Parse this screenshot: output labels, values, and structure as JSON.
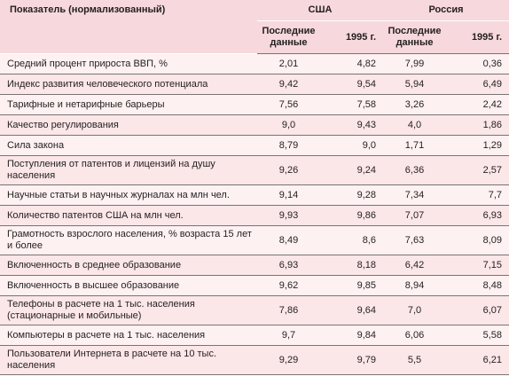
{
  "header": {
    "indicator": "Показатель (нормализованный)",
    "usa": "США",
    "russia": "Россия",
    "latest": "Последние данные",
    "year": "1995 г."
  },
  "rows": [
    {
      "name": "Средний процент прироста ВВП, %",
      "usa_latest": "2,01",
      "usa_1995": "4,82",
      "rus_latest": "7,99",
      "rus_1995": "0,36"
    },
    {
      "name": "Индекс развития человеческого потенциала",
      "usa_latest": "9,42",
      "usa_1995": "9,54",
      "rus_latest": "5,94",
      "rus_1995": "6,49"
    },
    {
      "name": "Тарифные и нетарифные барьеры",
      "usa_latest": "7,56",
      "usa_1995": "7,58",
      "rus_latest": "3,26",
      "rus_1995": "2,42"
    },
    {
      "name": "Качество регулирования",
      "usa_latest": "9,0",
      "usa_1995": "9,43",
      "rus_latest": "4,0",
      "rus_1995": "1,86"
    },
    {
      "name": "Сила закона",
      "usa_latest": "8,79",
      "usa_1995": "9,0",
      "rus_latest": "1,71",
      "rus_1995": "1,29"
    },
    {
      "name": "Поступления от патентов и лицензий на душу населения",
      "usa_latest": "9,26",
      "usa_1995": "9,24",
      "rus_latest": "6,36",
      "rus_1995": "2,57"
    },
    {
      "name": "Научные статьи в научных журналах на млн чел.",
      "usa_latest": "9,14",
      "usa_1995": "9,28",
      "rus_latest": "7,34",
      "rus_1995": "7,7"
    },
    {
      "name": "Количество патентов США на млн чел.",
      "usa_latest": "9,93",
      "usa_1995": "9,86",
      "rus_latest": "7,07",
      "rus_1995": "6,93"
    },
    {
      "name": "Грамотность взрослого населения, % возраста 15 лет и более",
      "usa_latest": "8,49",
      "usa_1995": "8,6",
      "rus_latest": "7,63",
      "rus_1995": "8,09"
    },
    {
      "name": "Включенность в среднее образование",
      "usa_latest": "6,93",
      "usa_1995": "8,18",
      "rus_latest": "6,42",
      "rus_1995": "7,15"
    },
    {
      "name": "Включенность в высшее образование",
      "usa_latest": "9,62",
      "usa_1995": "9,85",
      "rus_latest": "8,94",
      "rus_1995": "8,48"
    },
    {
      "name": "Телефоны в расчете на 1 тыс. населения (стационарные и мобильные)",
      "usa_latest": "7,86",
      "usa_1995": "9,64",
      "rus_latest": "7,0",
      "rus_1995": "6,07"
    },
    {
      "name": "Компьютеры в расчете на 1 тыс. населения",
      "usa_latest": "9,7",
      "usa_1995": "9,84",
      "rus_latest": "6,06",
      "rus_1995": "5,58"
    },
    {
      "name": "Пользователи Интернета в расчете на 10 тыс. населения",
      "usa_latest": "9,29",
      "usa_1995": "9,79",
      "rus_latest": "5,5",
      "rus_1995": "6,21"
    }
  ]
}
